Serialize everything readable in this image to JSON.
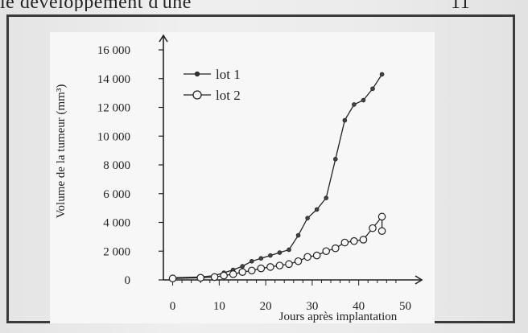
{
  "header": {
    "text": "le développement d'une",
    "page_number": "11"
  },
  "chart_data": {
    "type": "line",
    "xlabel": "Jours après implantation",
    "ylabel": "Volume de la tumeur (mm³)",
    "xlim": [
      -2,
      52
    ],
    "ylim": [
      0,
      16000
    ],
    "xticks": [
      0,
      10,
      20,
      30,
      40,
      50
    ],
    "xtick_labels": [
      "0",
      "10",
      "20",
      "30",
      "40",
      "50"
    ],
    "yticks": [
      0,
      2000,
      4000,
      6000,
      8000,
      10000,
      12000,
      14000,
      16000
    ],
    "ytick_labels": [
      "0",
      "2 000",
      "4 000",
      "6 000",
      "8 000",
      "10 000",
      "12 000",
      "14 000",
      "16 000"
    ],
    "legend_position": "top-left",
    "series": [
      {
        "name": "lot 1",
        "marker": "filled-small",
        "color": "#222222",
        "x": [
          0,
          6,
          9,
          11,
          13,
          15,
          17,
          19,
          21,
          23,
          25,
          27,
          29,
          31,
          33,
          35,
          37,
          39,
          41,
          43,
          45
        ],
        "y": [
          150,
          200,
          300,
          500,
          700,
          950,
          1300,
          1500,
          1700,
          1900,
          2100,
          3100,
          4300,
          4900,
          5700,
          8400,
          11100,
          12200,
          12500,
          13300,
          14300
        ]
      },
      {
        "name": "lot 2",
        "marker": "open-circle",
        "color": "#222222",
        "x": [
          0,
          6,
          9,
          11,
          13,
          15,
          17,
          19,
          21,
          23,
          25,
          27,
          29,
          31,
          33,
          35,
          37,
          39,
          41,
          43,
          45,
          45
        ],
        "y": [
          100,
          150,
          200,
          300,
          400,
          550,
          650,
          800,
          900,
          1000,
          1100,
          1300,
          1600,
          1700,
          2000,
          2200,
          2600,
          2700,
          2800,
          3600,
          4400,
          3400
        ]
      }
    ]
  }
}
